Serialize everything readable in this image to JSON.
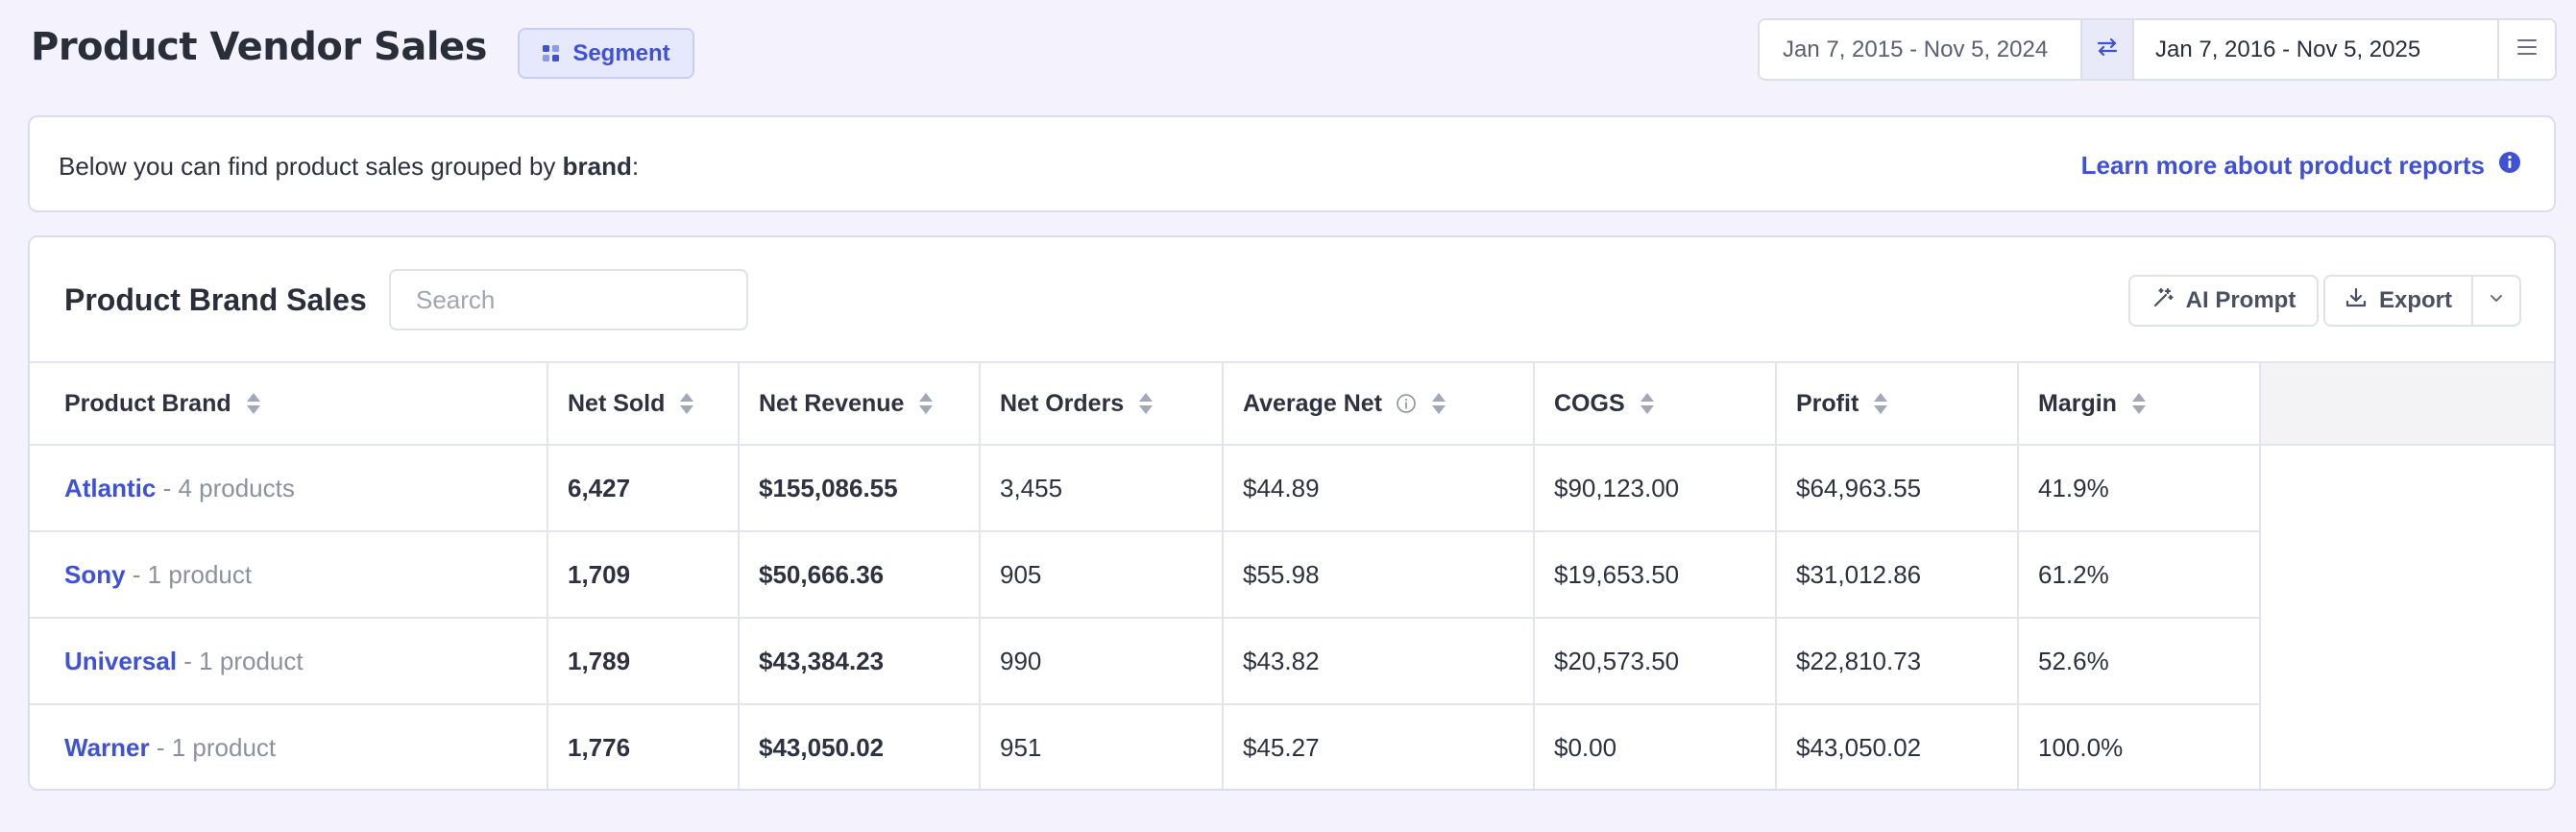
{
  "header": {
    "title": "Product Vendor Sales",
    "segment_label": "Segment",
    "date_compare": "Jan 7, 2015 - Nov 5, 2024",
    "date_current": "Jan 7, 2016 - Nov 5, 2025"
  },
  "info": {
    "text_prefix": "Below you can find product sales grouped by ",
    "text_bold": "brand",
    "text_suffix": ":",
    "learn_more": "Learn more about product reports"
  },
  "table_card": {
    "title": "Product Brand Sales",
    "search_placeholder": "Search",
    "search_value": "",
    "ai_prompt_label": "AI Prompt",
    "export_label": "Export",
    "columns": [
      "Product Brand",
      "Net Sold",
      "Net Revenue",
      "Net Orders",
      "Average Net",
      "COGS",
      "Profit",
      "Margin"
    ],
    "rows": [
      {
        "brand": "Atlantic",
        "count": " - 4 products",
        "net_sold": "6,427",
        "net_revenue": "$155,086.55",
        "net_orders": "3,455",
        "average_net": "$44.89",
        "cogs": "$90,123.00",
        "profit": "$64,963.55",
        "margin": "41.9%"
      },
      {
        "brand": "Sony",
        "count": " - 1 product",
        "net_sold": "1,709",
        "net_revenue": "$50,666.36",
        "net_orders": "905",
        "average_net": "$55.98",
        "cogs": "$19,653.50",
        "profit": "$31,012.86",
        "margin": "61.2%"
      },
      {
        "brand": "Universal",
        "count": " - 1 product",
        "net_sold": "1,789",
        "net_revenue": "$43,384.23",
        "net_orders": "990",
        "average_net": "$43.82",
        "cogs": "$20,573.50",
        "profit": "$22,810.73",
        "margin": "52.6%"
      },
      {
        "brand": "Warner",
        "count": " - 1 product",
        "net_sold": "1,776",
        "net_revenue": "$43,050.02",
        "net_orders": "951",
        "average_net": "$45.27",
        "cogs": "$0.00",
        "profit": "$43,050.02",
        "margin": "100.0%"
      }
    ]
  },
  "colors": {
    "accent": "#3f51d6",
    "background": "#f4f3fd",
    "border": "#e3e5ec"
  },
  "icons": [
    "segment-icon",
    "swap-arrows-icon",
    "hamburger-menu-icon",
    "info-circle-icon",
    "magic-wand-icon",
    "download-icon",
    "chevron-down-icon",
    "sort-icon"
  ]
}
